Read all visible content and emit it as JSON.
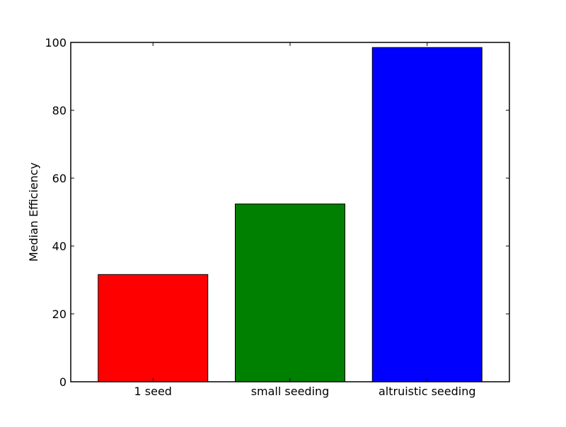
{
  "chart_data": {
    "type": "bar",
    "title": "",
    "xlabel": "",
    "ylabel": "Median Efficiency",
    "categories": [
      "1 seed",
      "small seeding",
      "altruistic seeding"
    ],
    "values": [
      31.6,
      52.4,
      98.5
    ],
    "colors": [
      "#ff0000",
      "#008000",
      "#0000ff"
    ],
    "ylim": [
      0,
      100
    ],
    "yticks": [
      0,
      20,
      40,
      60,
      80,
      100
    ],
    "ytick_labels": [
      "0",
      "20",
      "40",
      "60",
      "80",
      "100"
    ],
    "grid": false,
    "legend": "none"
  }
}
